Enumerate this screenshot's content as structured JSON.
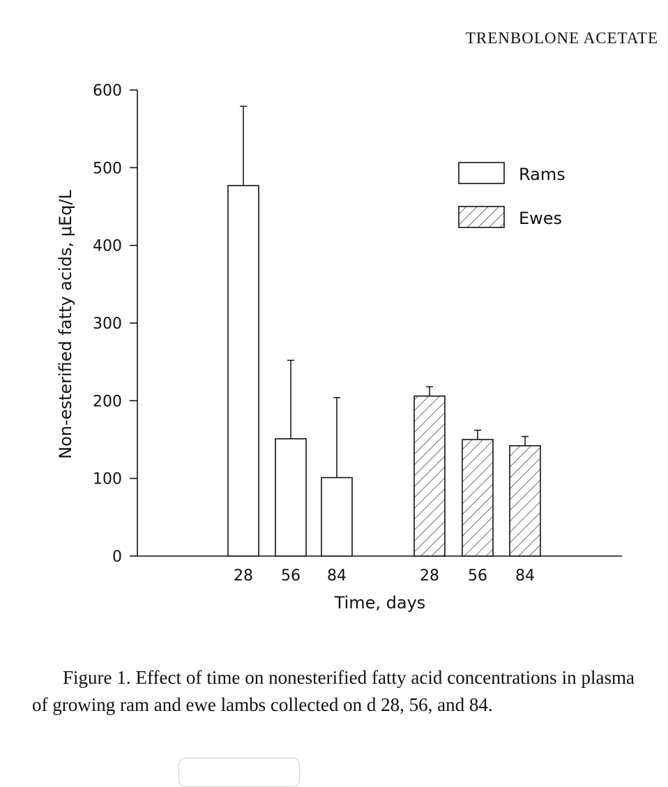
{
  "header": "TRENBOLONE ACETATE",
  "caption": "Figure 1. Effect of time on nonesterified fatty acid concentrations in plasma of growing ram and ewe lambs collected on d 28, 56, and 84.",
  "chart_data": {
    "type": "bar",
    "title": "",
    "xlabel": "Time, days",
    "ylabel": "Non-esterified fatty acids, μEq/L",
    "ylim": [
      0,
      600
    ],
    "yticks": [
      0,
      100,
      200,
      300,
      400,
      500,
      600
    ],
    "legend_position": "top-right",
    "series": [
      {
        "name": "Rams",
        "pattern": "open",
        "categories": [
          "28",
          "56",
          "84"
        ],
        "values": [
          477,
          151,
          101
        ],
        "error_upper": [
          579,
          252,
          204
        ]
      },
      {
        "name": "Ewes",
        "pattern": "hatched",
        "categories": [
          "28",
          "56",
          "84"
        ],
        "values": [
          206,
          150,
          142
        ],
        "error_upper": [
          218,
          162,
          154
        ]
      }
    ],
    "colors": {
      "stroke": "#111111",
      "fill": "#ffffff"
    }
  }
}
